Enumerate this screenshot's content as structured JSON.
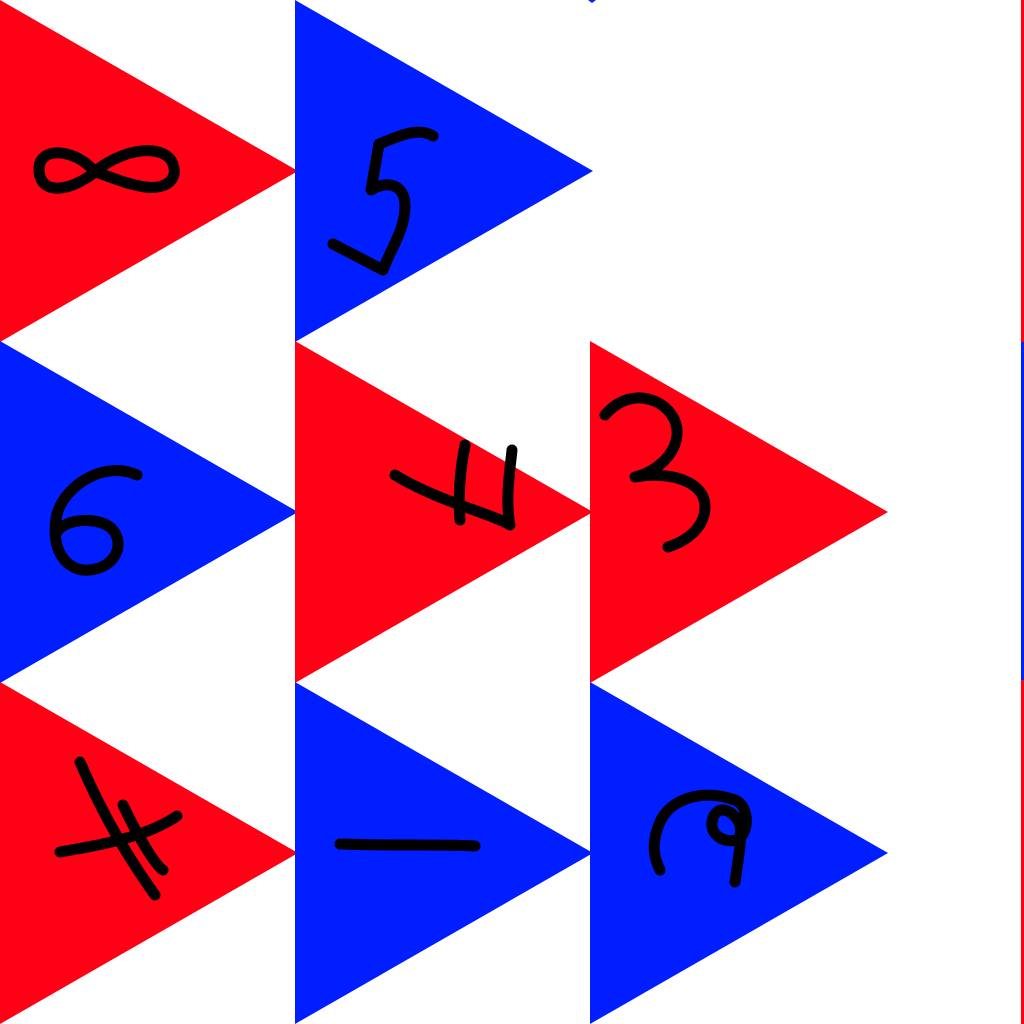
{
  "colors": {
    "background": "#ffffff",
    "red": "#ff0014",
    "blue": "#001eff",
    "ink": "#000000"
  },
  "grid": {
    "rows": 3,
    "columns": 3
  },
  "tiles": [
    {
      "row": 0,
      "col": 0,
      "digit": "8",
      "color": "red"
    },
    {
      "row": 0,
      "col": 1,
      "digit": "5",
      "color": "blue"
    },
    {
      "row": 1,
      "col": 0,
      "digit": "6",
      "color": "blue"
    },
    {
      "row": 1,
      "col": 1,
      "digit": "7",
      "color": "red",
      "rotated": true
    },
    {
      "row": 1,
      "col": 2,
      "digit": "3",
      "color": "red"
    },
    {
      "row": 2,
      "col": 0,
      "digit": "4",
      "color": "red",
      "rotated": true
    },
    {
      "row": 2,
      "col": 1,
      "digit": "1",
      "color": "blue",
      "rotated": true
    },
    {
      "row": 2,
      "col": 2,
      "digit": "2",
      "color": "blue",
      "rotated": true
    }
  ]
}
